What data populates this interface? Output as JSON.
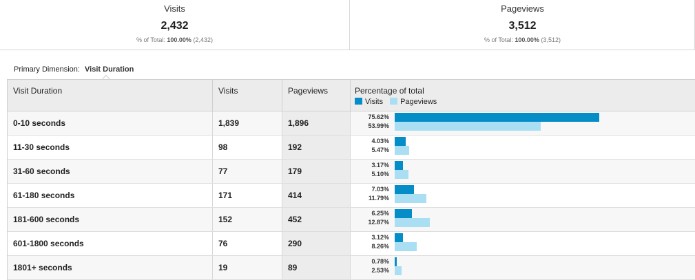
{
  "summary": [
    {
      "label": "Visits",
      "value": "2,432",
      "pct_prefix": "% of Total:",
      "pct_value": "100.00%",
      "pct_total": "(2,432)"
    },
    {
      "label": "Pageviews",
      "value": "3,512",
      "pct_prefix": "% of Total:",
      "pct_value": "100.00%",
      "pct_total": "(3,512)"
    }
  ],
  "primary_dimension": {
    "label": "Primary Dimension:",
    "value": "Visit Duration"
  },
  "table": {
    "headers": {
      "dimension": "Visit Duration",
      "visits": "Visits",
      "pageviews": "Pageviews",
      "percentage": "Percentage of total"
    },
    "legend": {
      "visits": "Visits",
      "pageviews": "Pageviews"
    },
    "colors": {
      "visits": "#058dc7",
      "pageviews": "#aadff3"
    },
    "rows": [
      {
        "duration": "0-10 seconds",
        "visits": "1,839",
        "pageviews": "1,896",
        "visits_pct": "75.62%",
        "pageviews_pct": "53.99%"
      },
      {
        "duration": "11-30 seconds",
        "visits": "98",
        "pageviews": "192",
        "visits_pct": "4.03%",
        "pageviews_pct": "5.47%"
      },
      {
        "duration": "31-60 seconds",
        "visits": "77",
        "pageviews": "179",
        "visits_pct": "3.17%",
        "pageviews_pct": "5.10%"
      },
      {
        "duration": "61-180 seconds",
        "visits": "171",
        "pageviews": "414",
        "visits_pct": "7.03%",
        "pageviews_pct": "11.79%"
      },
      {
        "duration": "181-600 seconds",
        "visits": "152",
        "pageviews": "452",
        "visits_pct": "6.25%",
        "pageviews_pct": "12.87%"
      },
      {
        "duration": "601-1800 seconds",
        "visits": "76",
        "pageviews": "290",
        "visits_pct": "3.12%",
        "pageviews_pct": "8.26%"
      },
      {
        "duration": "1801+ seconds",
        "visits": "19",
        "pageviews": "89",
        "visits_pct": "0.78%",
        "pageviews_pct": "2.53%"
      }
    ]
  }
}
